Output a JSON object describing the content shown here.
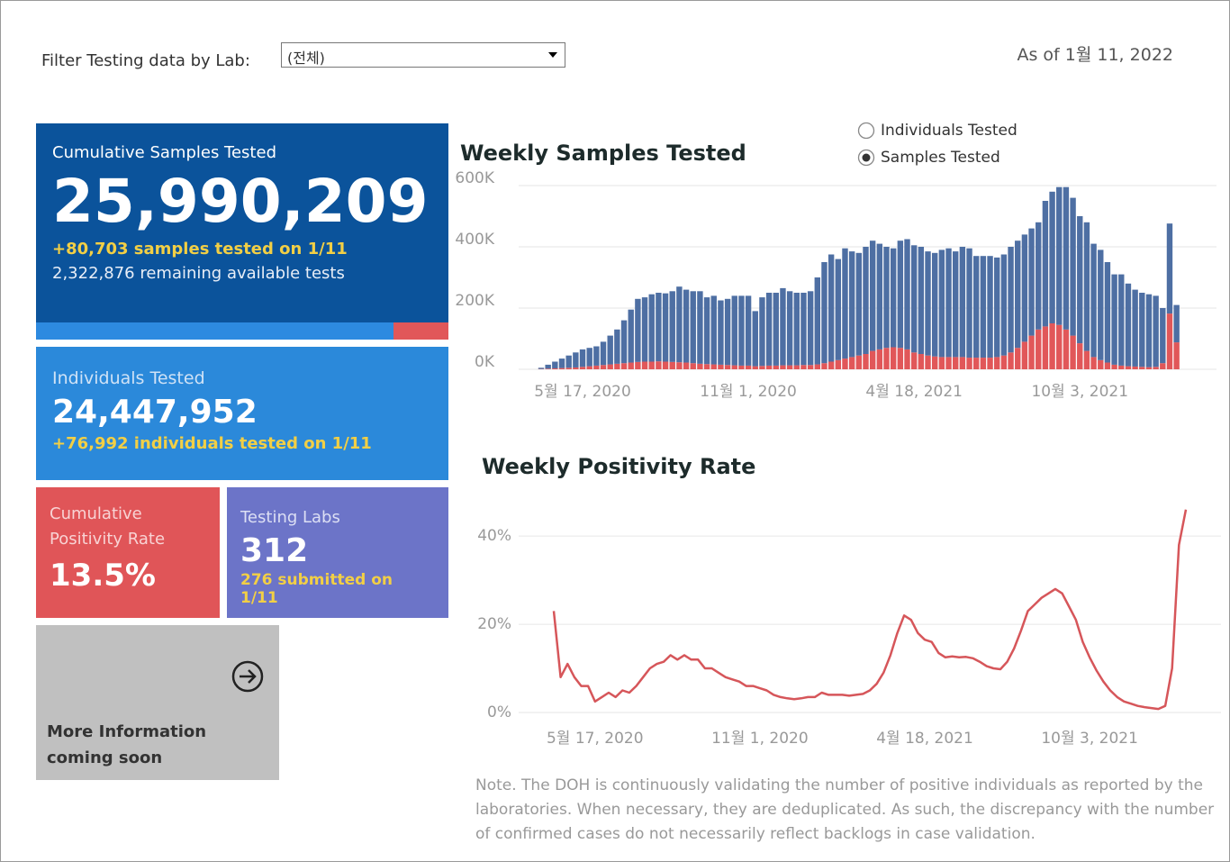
{
  "filter": {
    "label": "Filter Testing data by Lab:",
    "selected": "(전체)"
  },
  "as_of": "As of 1월 11, 2022",
  "cards": {
    "cumulative_samples": {
      "title": "Cumulative Samples Tested",
      "value": "25,990,209",
      "delta": "+80,703 samples tested on 1/11",
      "remaining": "2,322,876 remaining available tests"
    },
    "individuals": {
      "title": "Individuals Tested",
      "value": "24,447,952",
      "delta": "+76,992  individuals  tested on 1/11"
    },
    "positivity": {
      "title": "Cumulative Positivity Rate",
      "value": "13.5%"
    },
    "labs": {
      "title": "Testing Labs",
      "value": "312",
      "submitted": "276 submitted on 1/11"
    },
    "more_info": {
      "text": "More Information coming soon"
    }
  },
  "toggle": {
    "options": [
      "Individuals Tested",
      "Samples Tested"
    ],
    "selected": 1
  },
  "chart_data": [
    {
      "type": "bar",
      "title": "Weekly Samples Tested",
      "stacked": true,
      "grid": true,
      "categories": [
        null,
        null,
        null,
        null,
        null,
        null,
        "5월 17, 2020",
        null,
        null,
        null,
        null,
        null,
        null,
        null,
        null,
        null,
        null,
        null,
        null,
        null,
        null,
        null,
        null,
        null,
        null,
        null,
        null,
        null,
        null,
        null,
        "11월 1, 2020",
        null,
        null,
        null,
        null,
        null,
        null,
        null,
        null,
        null,
        null,
        null,
        null,
        null,
        null,
        null,
        null,
        null,
        null,
        null,
        null,
        null,
        null,
        null,
        "4월 18, 2021",
        null,
        null,
        null,
        null,
        null,
        null,
        null,
        null,
        null,
        null,
        null,
        null,
        null,
        null,
        null,
        null,
        null,
        null,
        null,
        null,
        null,
        null,
        null,
        "10월 3, 2021",
        null,
        null,
        null,
        null,
        null,
        null,
        null,
        null,
        null,
        null,
        null,
        null,
        null,
        null
      ],
      "series": [
        {
          "color": "#e15759",
          "values": [
            1000,
            2000,
            3000,
            4000,
            5000,
            6000,
            8000,
            10000,
            12000,
            14000,
            16000,
            18000,
            20000,
            22000,
            24000,
            25000,
            25000,
            26000,
            25000,
            24000,
            23000,
            22000,
            20000,
            18000,
            17000,
            16000,
            15000,
            14000,
            13000,
            12000,
            12000,
            10000,
            11000,
            12000,
            12000,
            13000,
            13000,
            13000,
            14000,
            14000,
            16000,
            20000,
            25000,
            30000,
            35000,
            40000,
            45000,
            50000,
            60000,
            65000,
            70000,
            72000,
            70000,
            65000,
            55000,
            50000,
            45000,
            42000,
            40000,
            40000,
            40000,
            40000,
            38000,
            38000,
            38000,
            38000,
            40000,
            45000,
            55000,
            70000,
            90000,
            110000,
            130000,
            140000,
            150000,
            145000,
            130000,
            110000,
            85000,
            60000,
            40000,
            30000,
            22000,
            15000,
            12000,
            10000,
            9000,
            8000,
            7000,
            8000,
            20000,
            182000,
            88000
          ]
        },
        {
          "color": "#4e6fa3",
          "values": [
            4000,
            13000,
            22000,
            31000,
            40000,
            49000,
            57000,
            60000,
            63000,
            76000,
            94000,
            112000,
            140000,
            173000,
            206000,
            210000,
            220000,
            224000,
            223000,
            231000,
            247000,
            238000,
            235000,
            237000,
            218000,
            224000,
            210000,
            216000,
            227000,
            228000,
            228000,
            180000,
            224000,
            238000,
            238000,
            252000,
            242000,
            237000,
            236000,
            241000,
            284000,
            330000,
            350000,
            330000,
            360000,
            345000,
            335000,
            350000,
            360000,
            345000,
            330000,
            323000,
            350000,
            360000,
            350000,
            350000,
            340000,
            338000,
            350000,
            355000,
            345000,
            360000,
            357000,
            332000,
            332000,
            332000,
            325000,
            330000,
            345000,
            350000,
            350000,
            350000,
            350000,
            410000,
            430000,
            450000,
            465000,
            450000,
            415000,
            420000,
            370000,
            360000,
            328000,
            295000,
            298000,
            270000,
            251000,
            242000,
            238000,
            232000,
            180000,
            294000,
            122000
          ]
        }
      ],
      "ylim": [
        0,
        600000
      ],
      "yticks": [
        {
          "value": 0,
          "label": "0K"
        },
        {
          "value": 200000,
          "label": "200K"
        },
        {
          "value": 400000,
          "label": "400K"
        },
        {
          "value": 600000,
          "label": "600K"
        }
      ]
    },
    {
      "type": "line",
      "title": "Weekly Positivity Rate",
      "grid": true,
      "color": "#d6565a",
      "categories": [
        null,
        null,
        null,
        null,
        null,
        null,
        "5월 17, 2020",
        null,
        null,
        null,
        null,
        null,
        null,
        null,
        null,
        null,
        null,
        null,
        null,
        null,
        null,
        null,
        null,
        null,
        null,
        null,
        null,
        null,
        null,
        null,
        "11월 1, 2020",
        null,
        null,
        null,
        null,
        null,
        null,
        null,
        null,
        null,
        null,
        null,
        null,
        null,
        null,
        null,
        null,
        null,
        null,
        null,
        null,
        null,
        null,
        null,
        "4월 18, 2021",
        null,
        null,
        null,
        null,
        null,
        null,
        null,
        null,
        null,
        null,
        null,
        null,
        null,
        null,
        null,
        null,
        null,
        null,
        null,
        null,
        null,
        null,
        null,
        "10월 3, 2021",
        null,
        null,
        null,
        null,
        null,
        null,
        null,
        null,
        null,
        null,
        null,
        null,
        null,
        null
      ],
      "values": [
        23,
        8,
        11,
        8,
        6,
        6,
        2.5,
        3.5,
        4.5,
        3.5,
        5,
        4.5,
        6,
        8,
        10,
        11,
        11.5,
        13,
        12,
        13,
        12,
        12,
        10,
        10,
        9,
        8,
        7.5,
        7,
        6,
        6,
        5.5,
        5,
        4,
        3.5,
        3.2,
        3,
        3.2,
        3.5,
        3.5,
        4.5,
        4,
        4,
        4,
        3.8,
        4,
        4.2,
        5,
        6.5,
        9,
        13,
        18,
        22,
        21,
        18,
        16.5,
        16,
        13.5,
        12.5,
        12.7,
        12.5,
        12.6,
        12.3,
        11.5,
        10.5,
        10,
        9.8,
        11.5,
        14.5,
        18.5,
        23,
        24.5,
        26,
        27,
        28,
        27,
        24,
        21,
        16,
        12.5,
        9.5,
        7,
        5,
        3.5,
        2.5,
        2,
        1.5,
        1.2,
        1,
        0.8,
        1.5,
        10,
        38,
        46
      ],
      "ylim": [
        0,
        48
      ],
      "yticks": [
        {
          "value": 0,
          "label": "0%"
        },
        {
          "value": 20,
          "label": "20%"
        },
        {
          "value": 40,
          "label": "40%"
        }
      ]
    }
  ],
  "note": "Note. The DOH is continuously validating the number of positive individuals as reported by the laboratories. When necessary, they are deduplicated. As such, the discrepancy with the number of confirmed cases do not necessarily reflect backlogs in case validation."
}
